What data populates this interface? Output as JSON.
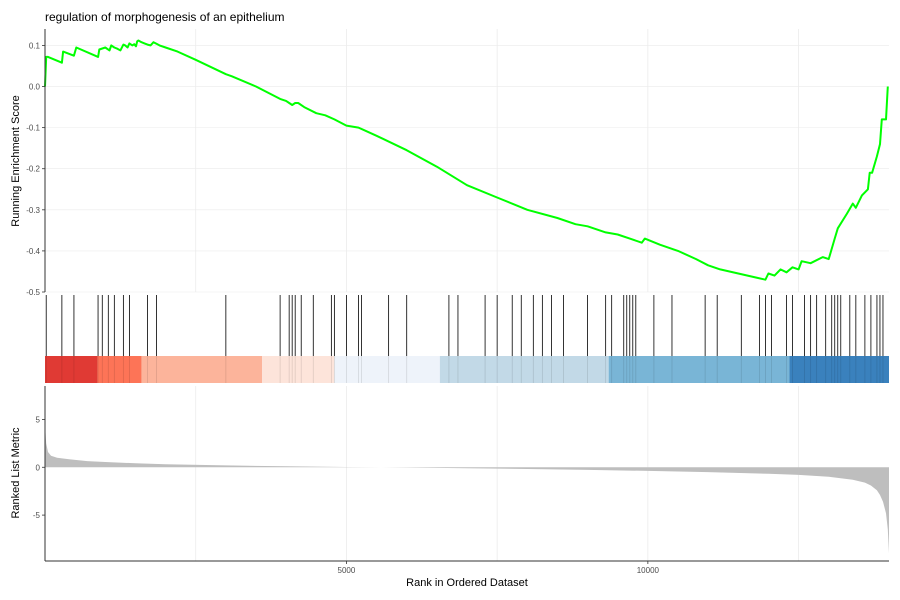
{
  "chart_data": {
    "type": "line",
    "title": "regulation of morphogenesis of an epithelium",
    "xlabel": "Rank in Ordered Dataset",
    "x_ticks": [
      5000,
      10000
    ],
    "x_range": [
      0,
      14000
    ],
    "grid": true,
    "legend": "none",
    "colors": {
      "line": "#00ff00",
      "hits": "#000000",
      "metric_fill": "#bebebe",
      "grid": "#ebebeb",
      "axis": "#333333"
    },
    "running_es": {
      "ylabel": "Running Enrichment Score",
      "y_ticks": [
        0.1,
        0.0,
        -0.1,
        -0.2,
        -0.3,
        -0.4,
        -0.5
      ],
      "y_tick_labels": [
        "0.1",
        "0.0",
        "-0.1",
        "-0.2",
        "-0.3",
        "-0.4",
        "-0.5"
      ],
      "ylim": [
        -0.5,
        0.14
      ],
      "x": [
        0,
        20,
        50,
        280,
        300,
        480,
        520,
        880,
        900,
        1000,
        1070,
        1100,
        1150,
        1200,
        1250,
        1300,
        1330,
        1370,
        1400,
        1450,
        1480,
        1510,
        1530,
        1550,
        1600,
        1650,
        1700,
        1750,
        1800,
        1850,
        1900,
        2000,
        2200,
        2500,
        3000,
        3100,
        3500,
        3900,
        4000,
        4050,
        4100,
        4150,
        4200,
        4300,
        4500,
        4650,
        4800,
        5000,
        5200,
        5500,
        6000,
        6500,
        7000,
        7500,
        8000,
        8500,
        8800,
        9000,
        9300,
        9500,
        9700,
        9900,
        9950,
        10200,
        10500,
        10800,
        11000,
        11200,
        11500,
        11800,
        11950,
        12000,
        12100,
        12200,
        12300,
        12400,
        12500,
        12550,
        12700,
        12900,
        13000,
        13050,
        13100,
        13150,
        13300,
        13400,
        13450,
        13550,
        13650,
        13680,
        13720,
        13800,
        13850,
        13880,
        13950,
        13980
      ],
      "y": [
        0.0,
        0.072,
        0.072,
        0.058,
        0.085,
        0.075,
        0.095,
        0.072,
        0.09,
        0.095,
        0.088,
        0.1,
        0.095,
        0.092,
        0.088,
        0.102,
        0.1,
        0.095,
        0.105,
        0.1,
        0.103,
        0.098,
        0.11,
        0.112,
        0.108,
        0.105,
        0.102,
        0.1,
        0.108,
        0.104,
        0.1,
        0.095,
        0.085,
        0.065,
        0.03,
        0.025,
        0.0,
        -0.03,
        -0.035,
        -0.04,
        -0.045,
        -0.04,
        -0.04,
        -0.05,
        -0.065,
        -0.07,
        -0.08,
        -0.095,
        -0.1,
        -0.12,
        -0.155,
        -0.195,
        -0.24,
        -0.27,
        -0.3,
        -0.32,
        -0.335,
        -0.34,
        -0.355,
        -0.36,
        -0.37,
        -0.38,
        -0.37,
        -0.385,
        -0.4,
        -0.42,
        -0.435,
        -0.445,
        -0.455,
        -0.465,
        -0.47,
        -0.455,
        -0.46,
        -0.445,
        -0.452,
        -0.44,
        -0.445,
        -0.425,
        -0.43,
        -0.415,
        -0.42,
        -0.395,
        -0.37,
        -0.345,
        -0.31,
        -0.285,
        -0.295,
        -0.265,
        -0.25,
        -0.21,
        -0.21,
        -0.17,
        -0.14,
        -0.08,
        -0.08,
        0.0
      ]
    },
    "hits": [
      20,
      280,
      480,
      880,
      950,
      1050,
      1150,
      1300,
      1400,
      1700,
      1850,
      3000,
      3900,
      4050,
      4100,
      4150,
      4250,
      4450,
      4750,
      4800,
      5000,
      5200,
      5250,
      5700,
      6000,
      6700,
      6850,
      7300,
      7500,
      7750,
      7900,
      8100,
      8250,
      8400,
      8600,
      9000,
      9300,
      9400,
      9600,
      9650,
      9700,
      9750,
      9800,
      10100,
      10400,
      10950,
      11150,
      11550,
      11850,
      11950,
      12050,
      12300,
      12400,
      12600,
      12700,
      12800,
      12950,
      13050,
      13100,
      13150,
      13200,
      13350,
      13450,
      13600,
      13700,
      13800,
      13850,
      13900
    ],
    "heat_bands": [
      {
        "x0": 0,
        "x1": 870,
        "color": "#e03a34"
      },
      {
        "x0": 870,
        "x1": 1600,
        "color": "#fd7457"
      },
      {
        "x0": 1600,
        "x1": 3600,
        "color": "#fcb49b"
      },
      {
        "x0": 3600,
        "x1": 4800,
        "color": "#fde4da"
      },
      {
        "x0": 4800,
        "x1": 6550,
        "color": "#eef3fa"
      },
      {
        "x0": 6550,
        "x1": 9350,
        "color": "#c2d9e7"
      },
      {
        "x0": 9350,
        "x1": 12350,
        "color": "#79b5d6"
      },
      {
        "x0": 12350,
        "x1": 14000,
        "color": "#3a81bd"
      }
    ],
    "ranked_metric": {
      "ylabel": "Ranked List Metric",
      "y_ticks": [
        5,
        0,
        -5
      ],
      "y_tick_labels": [
        "5",
        "0",
        "-5"
      ],
      "ylim": [
        -9.8,
        8.5
      ],
      "x": [
        0,
        20,
        50,
        100,
        200,
        400,
        700,
        1000,
        1500,
        2000,
        3000,
        4000,
        5000,
        6000,
        6500,
        7000,
        8000,
        9000,
        10000,
        11000,
        12000,
        12500,
        13000,
        13400,
        13600,
        13700,
        13800,
        13850,
        13900,
        13950,
        13980,
        14000
      ],
      "y": [
        4.5,
        2.5,
        1.6,
        1.2,
        1.0,
        0.85,
        0.65,
        0.55,
        0.42,
        0.32,
        0.2,
        0.1,
        0.03,
        -0.02,
        -0.06,
        -0.1,
        -0.18,
        -0.27,
        -0.38,
        -0.5,
        -0.68,
        -0.8,
        -1.0,
        -1.3,
        -1.6,
        -1.9,
        -2.4,
        -2.9,
        -3.6,
        -4.8,
        -6.5,
        -9.0
      ]
    }
  }
}
